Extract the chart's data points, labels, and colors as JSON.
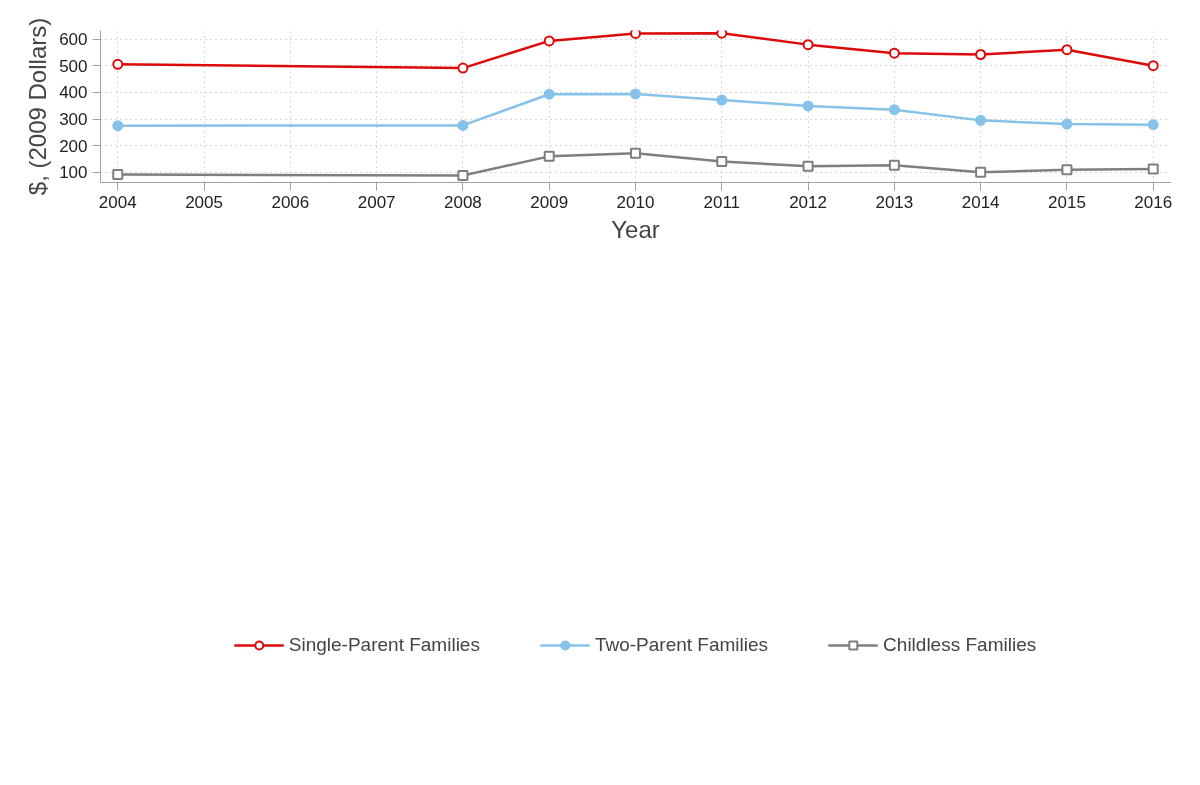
{
  "chart_data": {
    "type": "line",
    "xlabel": "Year",
    "ylabel": "$, (2009 Dollars)",
    "x": [
      2004,
      2008,
      2009,
      2010,
      2011,
      2012,
      2013,
      2014,
      2015,
      2016
    ],
    "xlim": [
      2003.8,
      2016.2
    ],
    "xticks": [
      2004,
      2005,
      2006,
      2007,
      2008,
      2009,
      2010,
      2011,
      2012,
      2013,
      2014,
      2015,
      2016
    ],
    "ylim": [
      62,
      632
    ],
    "yticks": [
      100,
      200,
      300,
      400,
      500,
      600
    ],
    "grid": true,
    "legend": "bottom",
    "line_style": "solid",
    "series": [
      {
        "name": "Single-Parent Families",
        "color": "#dd0a0a",
        "marker": "circle",
        "values": [
          505,
          491,
          593,
          621,
          622,
          579,
          547,
          542,
          560,
          500
        ]
      },
      {
        "name": "Two-Parent Families",
        "color": "#86c2ea",
        "marker": "circle",
        "values": [
          275,
          276,
          393,
          394,
          371,
          349,
          335,
          295,
          281,
          279
        ]
      },
      {
        "name": "Childless Families",
        "color": "#7f7f7f",
        "marker": "square",
        "values": [
          92,
          88,
          160,
          172,
          141,
          123,
          127,
          100,
          110,
          113
        ]
      }
    ]
  }
}
